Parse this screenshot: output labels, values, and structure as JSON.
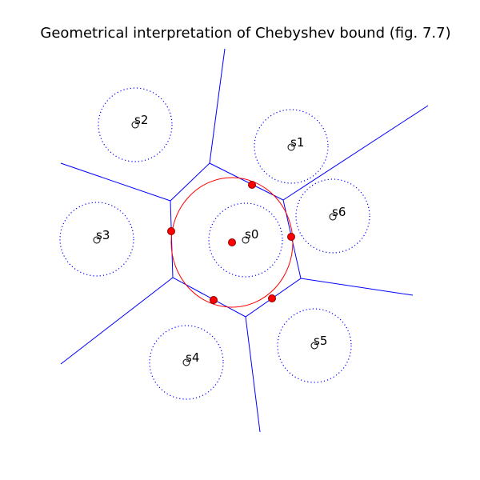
{
  "title": "Geometrical interpretation of Chebyshev bound (fig. 7.7)",
  "colors": {
    "background": "#ffffff",
    "voronoi_edges": "#0000ff",
    "noise_circles": "#0000ff",
    "chebyshev_ellipse": "#ff0000",
    "touch_points_fill": "#ff0000",
    "touch_points_stroke": "#8b0000",
    "signal_points": "#000000"
  },
  "points": [
    {
      "label": "s0"
    },
    {
      "label": "s1"
    },
    {
      "label": "s2"
    },
    {
      "label": "s3"
    },
    {
      "label": "s4"
    },
    {
      "label": "s5"
    },
    {
      "label": "s6"
    }
  ]
}
